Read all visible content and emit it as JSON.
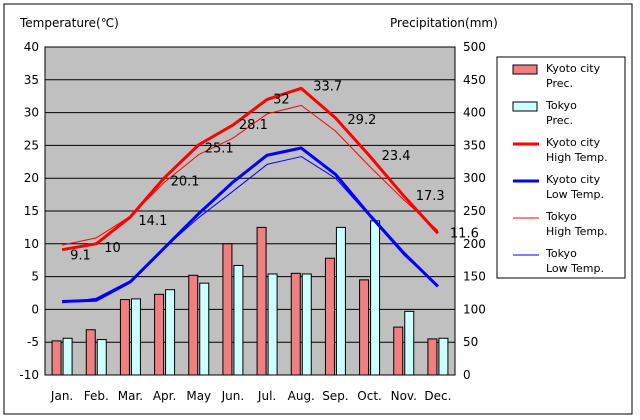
{
  "chart_data": {
    "type": "bar+line",
    "title": "",
    "y_left_label": "Temperature(℃)",
    "y_right_label": "Precipitation(mm)",
    "y_left_range": [
      -10,
      40
    ],
    "y_left_ticks": [
      "-10",
      "-5",
      "0",
      "5",
      "10",
      "15",
      "20",
      "25",
      "30",
      "35",
      "40"
    ],
    "y_right_range": [
      0,
      500
    ],
    "y_right_ticks": [
      "0",
      "50",
      "100",
      "150",
      "200",
      "250",
      "300",
      "350",
      "400",
      "450",
      "500"
    ],
    "categories": [
      "Jan.",
      "Feb.",
      "Mar.",
      "Apr.",
      "May",
      "Jun.",
      "Jul.",
      "Aug.",
      "Sep.",
      "Oct.",
      "Nov.",
      "Dec."
    ],
    "bar_series": [
      {
        "name": "Kyoto city Prec.",
        "legend": [
          "Kyoto city",
          "Prec."
        ],
        "color": "#f08080",
        "values": [
          52,
          69,
          115,
          123,
          152,
          200,
          225,
          155,
          178,
          145,
          73,
          55
        ]
      },
      {
        "name": "Tokyo Prec.",
        "legend": [
          "Tokyo",
          "Prec."
        ],
        "color": "#ccffff",
        "values": [
          56,
          54,
          116,
          130,
          140,
          167,
          154,
          154,
          225,
          235,
          97,
          56
        ]
      }
    ],
    "line_series": [
      {
        "name": "Kyoto city High Temp.",
        "legend": [
          "Kyoto city",
          "High Temp."
        ],
        "color": "#ff0000",
        "width": 3,
        "values": [
          9.1,
          10.0,
          14.1,
          20.1,
          25.1,
          28.1,
          32.0,
          33.7,
          29.2,
          23.4,
          17.3,
          11.6
        ]
      },
      {
        "name": "Kyoto city Low Temp.",
        "legend": [
          "Kyoto city",
          "Low Temp."
        ],
        "color": "#0000ff",
        "width": 3,
        "values": [
          1.2,
          1.4,
          4.2,
          9.4,
          14.6,
          19.4,
          23.5,
          24.6,
          20.6,
          14.4,
          8.6,
          3.5
        ]
      },
      {
        "name": "Tokyo High Temp.",
        "legend": [
          "Tokyo",
          "High Temp."
        ],
        "color": "#ff0000",
        "width": 1,
        "values": [
          9.8,
          10.9,
          14.2,
          19.4,
          23.6,
          26.1,
          29.8,
          31.1,
          27.2,
          21.8,
          16.7,
          12.0
        ]
      },
      {
        "name": "Tokyo Low Temp.",
        "legend": [
          "Tokyo",
          "Low Temp."
        ],
        "color": "#0000ff",
        "width": 1,
        "values": [
          1.0,
          1.7,
          4.4,
          9.4,
          14.0,
          18.0,
          22.1,
          23.3,
          20.0,
          14.2,
          8.3,
          3.5
        ]
      }
    ],
    "data_labels": [
      "9.1",
      "10",
      "14.1",
      "20.1",
      "25.1",
      "28.1",
      "32",
      "33.7",
      "29.2",
      "23.4",
      "17.3",
      "11.6"
    ],
    "colors": {
      "plot_bg": "#c0c0c0",
      "grid": "#000000"
    }
  }
}
